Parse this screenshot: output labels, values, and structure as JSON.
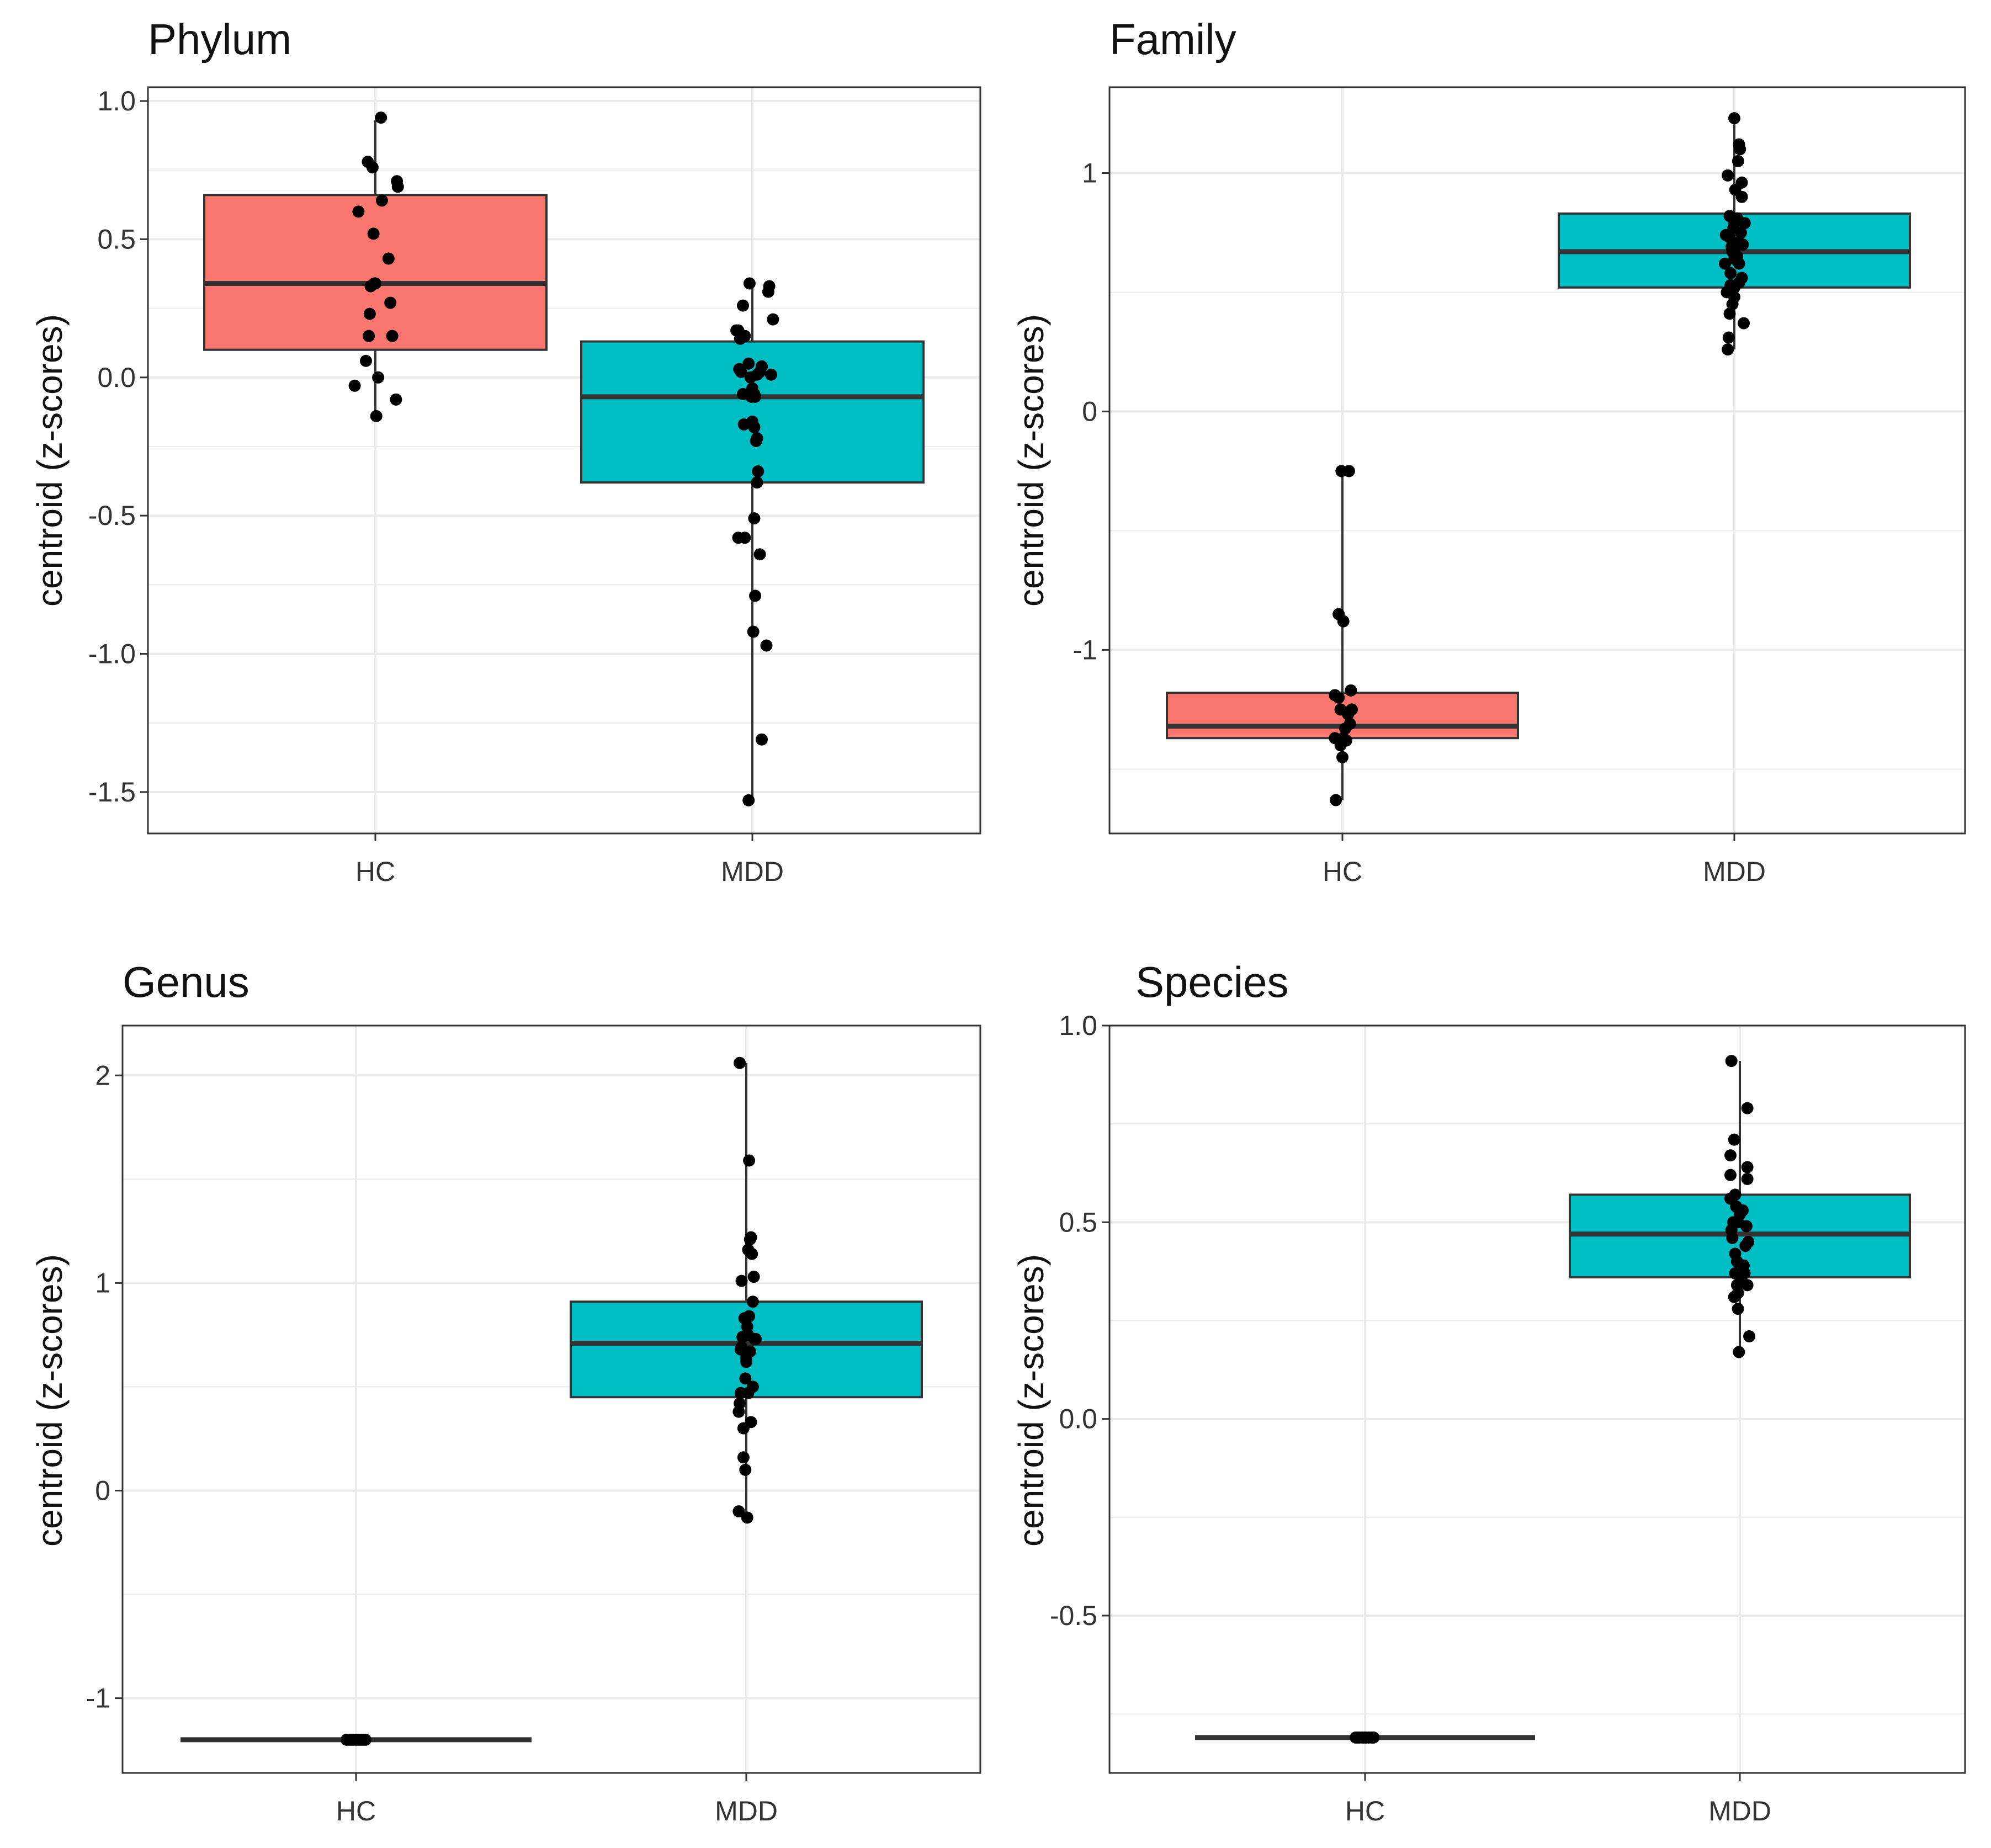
{
  "figure": {
    "background": "#ffffff"
  },
  "colors": {
    "hc": "#F8766D",
    "mdd": "#00BFC4",
    "point": "#000000",
    "box_line": "#333333",
    "grid": "#EBEBEB",
    "border": "#333333"
  },
  "chart_data": [
    {
      "type": "boxplot",
      "title": "Phylum",
      "xlabel": "",
      "ylabel": "centroid (z-scores)",
      "categories": [
        "HC",
        "MDD"
      ],
      "ylim": [
        -1.65,
        1.05
      ],
      "yticks": [
        1.0,
        0.5,
        0.0,
        -0.5,
        -1.0,
        -1.5
      ],
      "ytick_labels": [
        "1.0",
        "0.5",
        "0.0",
        "-0.5",
        "-1.0",
        "-1.5"
      ],
      "boxes": [
        {
          "group": "HC",
          "q1": 0.1,
          "median": 0.34,
          "q3": 0.66,
          "whisker_low": -0.14,
          "whisker_high": 0.93,
          "color": "#F8766D"
        },
        {
          "group": "MDD",
          "q1": -0.38,
          "median": -0.07,
          "q3": 0.13,
          "whisker_low": -1.53,
          "whisker_high": 0.34,
          "color": "#00BFC4"
        }
      ],
      "points": [
        {
          "group": "HC",
          "jitter": [
            0.06,
            0.23,
            -0.08,
            -0.03,
            0.24,
            0.14,
            0.07,
            -0.18,
            -0.02,
            0.16,
            -0.01,
            -0.05,
            -0.06,
            0.0,
            -0.07,
            0.18,
            -0.1,
            -0.22,
            0.03,
            0.22,
            0.01
          ],
          "values": [
            0.94,
            0.71,
            0.78,
            0.76,
            0.69,
            0.43,
            0.64,
            0.6,
            0.52,
            0.27,
            0.34,
            0.33,
            0.23,
            0.34,
            0.15,
            0.15,
            0.06,
            -0.03,
            0.0,
            -0.08,
            -0.14
          ]
        },
        {
          "group": "MDD",
          "jitter": [
            -0.03,
            0.18,
            0.17,
            -0.1,
            0.22,
            -0.17,
            -0.15,
            -0.08,
            -0.13,
            -0.14,
            -0.12,
            -0.04,
            0.1,
            0.08,
            -0.02,
            0.05,
            0.2,
            -0.1,
            0.03,
            -0.01,
            0.0,
            -0.09,
            0.02,
            0.05,
            0.04,
            0.06,
            0.05,
            0.02,
            -0.08,
            0.08,
            0.15,
            -0.15,
            0.03,
            0.01,
            0.1,
            -0.04,
            0.02,
            0.0
          ],
          "values": [
            0.34,
            0.33,
            0.31,
            0.26,
            0.21,
            0.17,
            0.17,
            0.15,
            0.14,
            0.03,
            0.02,
            0.05,
            0.04,
            0.02,
            0.0,
            0.01,
            0.01,
            -0.06,
            -0.07,
            -0.07,
            -0.16,
            -0.17,
            -0.18,
            -0.22,
            -0.23,
            -0.34,
            -0.38,
            -0.51,
            -0.58,
            -0.64,
            -0.97,
            -0.58,
            -0.79,
            -0.92,
            -1.31,
            -1.53,
            -0.06,
            -0.04
          ]
        }
      ]
    },
    {
      "type": "boxplot",
      "title": "Family",
      "xlabel": "",
      "ylabel": "centroid (z-scores)",
      "categories": [
        "HC",
        "MDD"
      ],
      "ylim": [
        -1.77,
        1.36
      ],
      "yticks": [
        1,
        0,
        -1
      ],
      "ytick_labels": [
        "1",
        "0",
        "-1"
      ],
      "boxes": [
        {
          "group": "HC",
          "q1": -1.37,
          "median": -1.32,
          "q3": -1.18,
          "whisker_low": -1.63,
          "whisker_high": -0.25,
          "color": "#F8766D"
        },
        {
          "group": "MDD",
          "q1": 0.52,
          "median": 0.67,
          "q3": 0.83,
          "whisker_low": 0.26,
          "whisker_high": 1.23,
          "color": "#00BFC4"
        }
      ],
      "points": [
        {
          "group": "HC",
          "jitter": [
            -0.01,
            0.07,
            -0.04,
            0.01,
            0.09,
            -0.04,
            -0.08,
            0.1,
            0.06,
            -0.02,
            0.08,
            0.03,
            0.01,
            -0.08,
            0.04,
            -0.02,
            0.0,
            -0.07
          ],
          "values": [
            -0.25,
            -0.25,
            -0.85,
            -0.88,
            -1.17,
            -1.2,
            -1.19,
            -1.25,
            -1.27,
            -1.25,
            -1.31,
            -1.33,
            -1.37,
            -1.37,
            -1.38,
            -1.4,
            -1.45,
            -1.63
          ]
        },
        {
          "group": "MDD",
          "jitter": [
            0.0,
            0.05,
            0.06,
            -0.07,
            0.04,
            0.01,
            0.08,
            0.08,
            -0.05,
            0.11,
            0.03,
            -0.01,
            0.0,
            0.07,
            -0.09,
            -0.05,
            0.05,
            -0.03,
            0.0,
            0.03,
            0.0,
            -0.1,
            -0.04,
            0.08,
            -0.04,
            0.0,
            0.0,
            -0.08,
            0.1,
            -0.02,
            -0.07,
            -0.06,
            -0.05,
            0.05,
            -0.02,
            0.05,
            0.09
          ],
          "values": [
            1.23,
            1.12,
            1.1,
            0.99,
            1.05,
            0.93,
            0.96,
            0.9,
            0.82,
            0.79,
            0.81,
            0.77,
            0.79,
            0.75,
            0.74,
            0.73,
            0.71,
            0.69,
            0.68,
            0.65,
            0.64,
            0.62,
            0.58,
            0.56,
            0.53,
            0.52,
            0.48,
            0.5,
            0.37,
            0.45,
            0.26,
            0.31,
            0.41,
            0.54,
            0.67,
            0.62,
            0.7
          ]
        }
      ]
    },
    {
      "type": "boxplot",
      "title": "Genus",
      "xlabel": "",
      "ylabel": "centroid (z-scores)",
      "categories": [
        "HC",
        "MDD"
      ],
      "ylim": [
        -1.36,
        2.24
      ],
      "yticks": [
        2,
        1,
        0,
        -1
      ],
      "ytick_labels": [
        "2",
        "1",
        "0",
        "-1"
      ],
      "boxes": [
        {
          "group": "HC",
          "q1": -1.2,
          "median": -1.2,
          "q3": -1.2,
          "whisker_low": -1.2,
          "whisker_high": -1.2,
          "color": "#F8766D"
        },
        {
          "group": "MDD",
          "q1": 0.45,
          "median": 0.71,
          "q3": 0.91,
          "whisker_low": -0.13,
          "whisker_high": 2.06,
          "color": "#00BFC4"
        }
      ],
      "points": [
        {
          "group": "HC",
          "jitter": [
            -0.1,
            -0.07,
            -0.05,
            -0.03,
            0.0,
            0.02,
            0.04,
            0.06,
            0.08,
            0.1
          ],
          "values": [
            -1.2,
            -1.2,
            -1.2,
            -1.2,
            -1.2,
            -1.2,
            -1.2,
            -1.2,
            -1.2,
            -1.2
          ]
        },
        {
          "group": "MDD",
          "jitter": [
            -0.07,
            0.03,
            0.05,
            0.04,
            0.06,
            0.02,
            -0.05,
            0.08,
            0.07,
            0.03,
            -0.02,
            0.01,
            0.09,
            -0.04,
            0.1,
            -0.05,
            0.04,
            -0.06,
            0.0,
            0.07,
            -0.01,
            0.02,
            -0.08,
            -0.07,
            -0.06,
            -0.03,
            0.05,
            -0.01,
            -0.03,
            0.0,
            0.02,
            -0.08,
            0.01
          ],
          "values": [
            2.06,
            1.59,
            1.22,
            1.21,
            1.14,
            1.16,
            1.01,
            1.03,
            0.91,
            0.84,
            0.83,
            0.79,
            0.73,
            0.74,
            0.73,
            0.69,
            0.67,
            0.68,
            0.62,
            0.5,
            0.54,
            0.47,
            0.38,
            0.42,
            0.47,
            0.3,
            0.33,
            0.1,
            0.16,
            0.64,
            0.75,
            -0.1,
            -0.13
          ]
        }
      ]
    },
    {
      "type": "boxplot",
      "title": "Species",
      "xlabel": "",
      "ylabel": "centroid (z-scores)",
      "categories": [
        "HC",
        "MDD"
      ],
      "ylim": [
        -0.9,
        1.0
      ],
      "yticks": [
        1.0,
        0.5,
        0.0,
        -0.5
      ],
      "ytick_labels": [
        "1.0",
        "0.5",
        "0.0",
        "-0.5"
      ],
      "boxes": [
        {
          "group": "HC",
          "q1": -0.81,
          "median": -0.81,
          "q3": -0.81,
          "whisker_low": -0.81,
          "whisker_high": -0.81,
          "color": "#F8766D"
        },
        {
          "group": "MDD",
          "q1": 0.36,
          "median": 0.47,
          "q3": 0.57,
          "whisker_low": 0.17,
          "whisker_high": 0.91,
          "color": "#00BFC4"
        }
      ],
      "points": [
        {
          "group": "HC",
          "jitter": [
            -0.1,
            -0.08,
            -0.06,
            -0.03,
            -0.01,
            0.01,
            0.04,
            0.07,
            0.09
          ],
          "values": [
            -0.81,
            -0.81,
            -0.81,
            -0.81,
            -0.81,
            -0.81,
            -0.81,
            -0.81,
            -0.81
          ]
        },
        {
          "group": "MDD",
          "jitter": [
            -0.09,
            0.08,
            -0.06,
            -0.1,
            -0.1,
            0.08,
            0.08,
            -0.05,
            -0.1,
            -0.04,
            0.03,
            0.0,
            -0.02,
            -0.07,
            0.07,
            -0.09,
            -0.08,
            0.06,
            -0.05,
            0.09,
            -0.03,
            -0.05,
            0.05,
            0.02,
            -0.03,
            0.08,
            -0.02,
            -0.06,
            -0.02,
            0.1,
            -0.01,
            0.04
          ],
          "values": [
            0.91,
            0.79,
            0.71,
            0.67,
            0.62,
            0.64,
            0.61,
            0.57,
            0.56,
            0.54,
            0.53,
            0.52,
            0.5,
            0.5,
            0.49,
            0.48,
            0.46,
            0.44,
            0.42,
            0.45,
            0.4,
            0.37,
            0.37,
            0.35,
            0.34,
            0.34,
            0.32,
            0.31,
            0.28,
            0.21,
            0.17,
            0.39
          ]
        }
      ]
    }
  ]
}
